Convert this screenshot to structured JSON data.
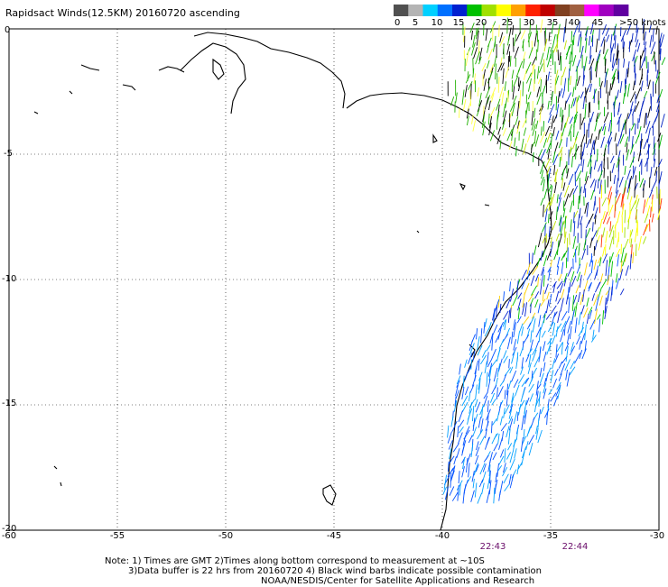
{
  "title": "Rapidsact Winds(12.5KM) 20160720 ascending",
  "legend": {
    "ticks": [
      "0",
      "5",
      "10",
      "15",
      "20",
      "25",
      "30",
      "35",
      "40",
      "45",
      ">50 knots"
    ],
    "colors": [
      "#505050",
      "#b4b4b4",
      "#00d0ff",
      "#0070ff",
      "#0020d0",
      "#00c000",
      "#a0e000",
      "#ffff00",
      "#ffa000",
      "#ff2000",
      "#c00000",
      "#804020",
      "#a06040",
      "#ff00ff",
      "#a000c0",
      "#6000a0"
    ]
  },
  "map": {
    "lon_range": [
      -60,
      -30
    ],
    "lat_range": [
      0,
      -20
    ],
    "lon_ticks": [
      "-60",
      "-55",
      "-50",
      "-45",
      "-40",
      "-35",
      "-30"
    ],
    "lat_ticks": [
      "0",
      "-5",
      "-10",
      "-15",
      "-20"
    ]
  },
  "times": [
    "22:43",
    "22:44"
  ],
  "notes": {
    "line1": "Note: 1) Times are GMT 2)Times along bottom correspond to measurement at ~10S",
    "line2": "3)Data buffer is 22 hrs from 20160720 4) Black wind barbs indicate possible contamination",
    "line3": "NOAA/NESDIS/Center for Satellite Applications and Research"
  }
}
